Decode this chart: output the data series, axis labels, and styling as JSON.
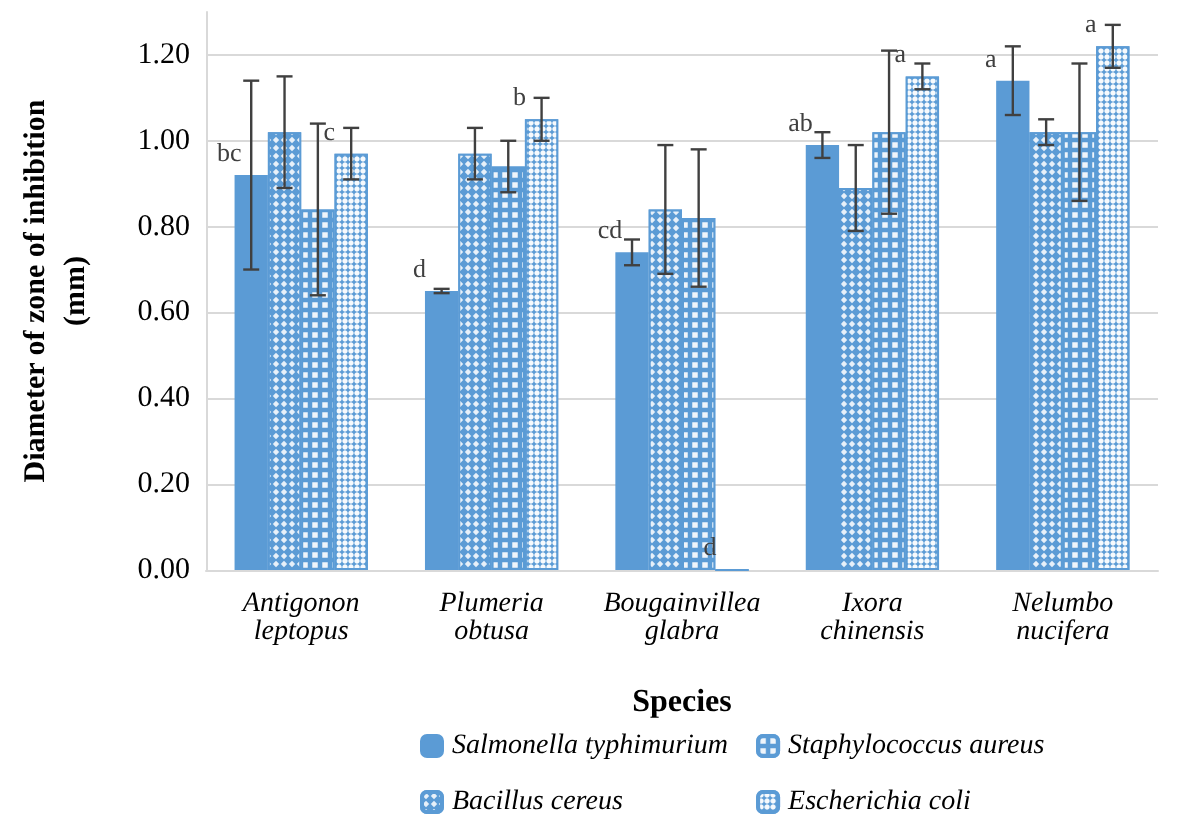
{
  "chart_data": {
    "type": "bar",
    "xlabel": "Species",
    "ylabel": "Diameter of zone of inhibition\n(mm)",
    "categories": [
      "Antigonon\nleptopus",
      "Plumeria\nobtusa",
      "Bougainvillea\nglabra",
      "Ixora\nchinensis",
      "Nelumbo\nnucifera"
    ],
    "series": [
      {
        "name": "Salmonella typhimurium",
        "color": "#5b9bd5",
        "values": [
          0.92,
          0.65,
          0.74,
          0.99,
          1.14
        ],
        "errors": [
          0.22,
          0.005,
          0.03,
          0.03,
          0.08
        ],
        "value_labels": [
          "bc",
          "d",
          "cd",
          "ab",
          "a"
        ]
      },
      {
        "name": "Bacillus cereus",
        "color": "#5b9bd5",
        "values": [
          1.02,
          0.97,
          0.84,
          0.89,
          1.02
        ],
        "errors": [
          0.13,
          0.06,
          0.15,
          0.1,
          0.03
        ]
      },
      {
        "name": "Staphylococcus aureus",
        "color": "#5b9bd5",
        "values": [
          0.84,
          0.94,
          0.82,
          1.02,
          1.02
        ],
        "errors": [
          0.2,
          0.06,
          0.16,
          0.19,
          0.16
        ]
      },
      {
        "name": "Escherichia coli",
        "color": "#5b9bd5",
        "values": [
          0.97,
          1.05,
          0,
          1.15,
          1.22
        ],
        "errors": [
          0.06,
          0.05,
          null,
          0.03,
          0.05
        ],
        "value_labels": [
          "c",
          "b",
          "d",
          "a",
          "a"
        ]
      }
    ],
    "ylim": [
      0,
      1.3
    ],
    "yticks": [
      {
        "value": 0,
        "label": "0.00"
      },
      {
        "value": 0.2,
        "label": "0.20"
      },
      {
        "value": 0.4,
        "label": "0.40"
      },
      {
        "value": 0.6,
        "label": "0.60"
      },
      {
        "value": 0.8,
        "label": "0.80"
      },
      {
        "value": 1,
        "label": "1.00"
      },
      {
        "value": 1.2,
        "label": "1.20"
      }
    ],
    "grid": "y",
    "legend": "bottom"
  }
}
